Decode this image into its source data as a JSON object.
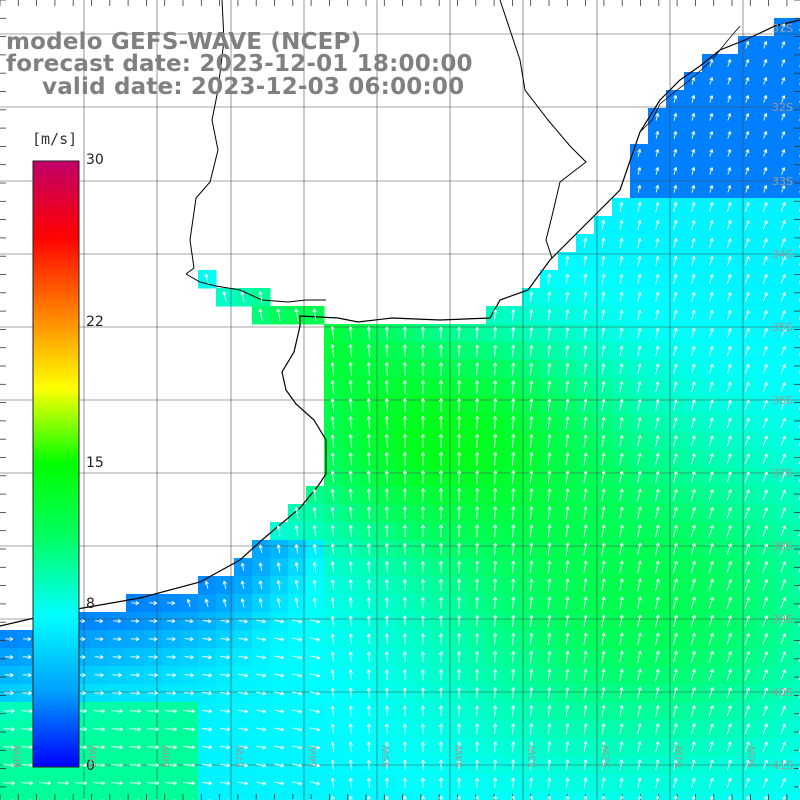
{
  "header": {
    "model_line": "modelo GEFS-WAVE (NCEP)",
    "forecast_line": "forecast date: 2023-12-01 18:00:00",
    "valid_line": "valid date: 2023-12-03 06:00:00"
  },
  "legend": {
    "units": "[m/s]",
    "min": 0,
    "max": 30,
    "ticks": [
      {
        "value": 30,
        "label": "30"
      },
      {
        "value": 22,
        "label": "22"
      },
      {
        "value": 15,
        "label": "15"
      },
      {
        "value": 8,
        "label": "8"
      },
      {
        "value": 0,
        "label": "0"
      }
    ],
    "colors": [
      "#0000ff",
      "#00a0ff",
      "#00ffff",
      "#00ff66",
      "#00ff00",
      "#ffff00",
      "#ff8000",
      "#ff0000",
      "#c0006a"
    ]
  },
  "lat_labels": [
    "31S",
    "32S",
    "33S",
    "34S",
    "35S",
    "36S",
    "37S",
    "38S",
    "39S",
    "40S",
    "41S"
  ],
  "lon_labels": [
    "60W",
    "59W",
    "58W",
    "57W",
    "56W",
    "55W",
    "54W",
    "53W",
    "52W",
    "51W",
    "50W"
  ],
  "colors": {
    "land": "#ffffff",
    "grid": "#4d4d4d",
    "coast": "#000000",
    "arrow": "#ffffff",
    "title": "#808080"
  }
}
